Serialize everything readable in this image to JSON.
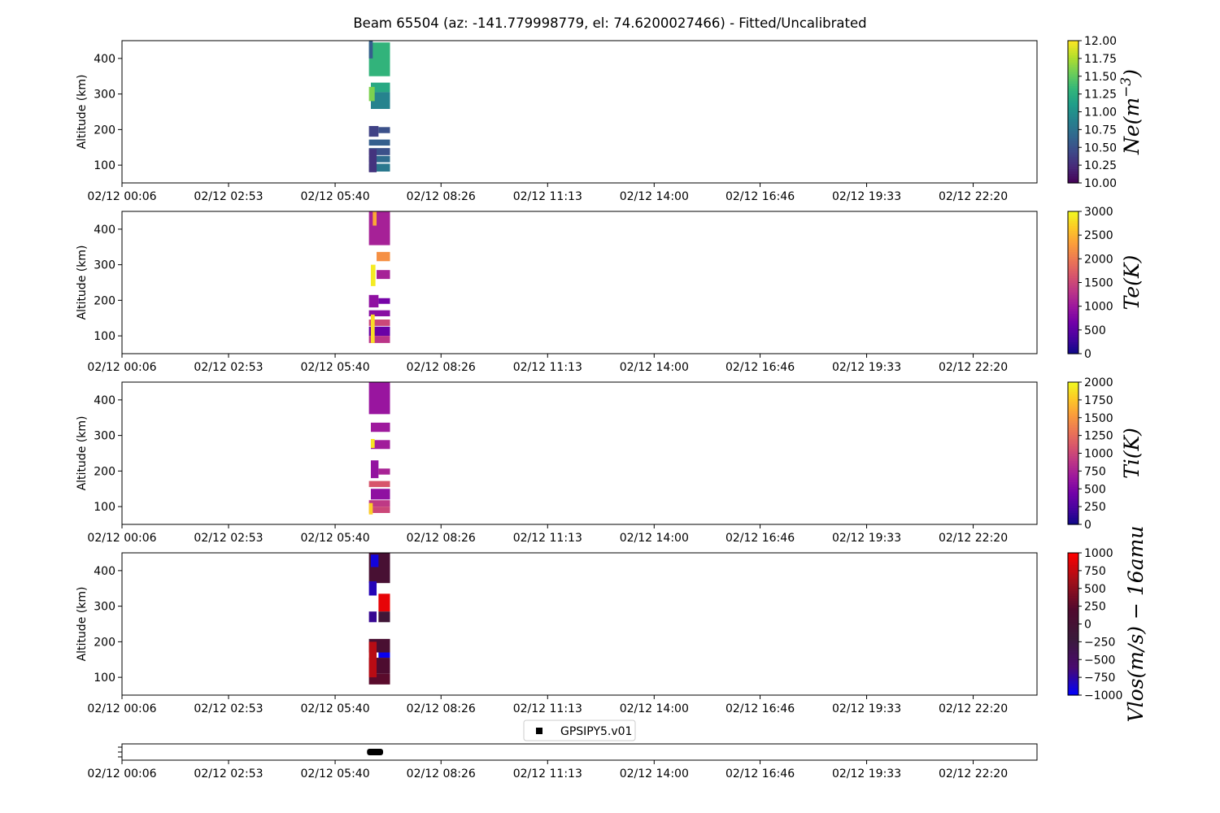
{
  "title": "Beam 65504 (az: -141.779998779, el: 74.6200027466) - Fitted/Uncalibrated",
  "x_tick_labels": [
    "02/12 00:06",
    "02/12 02:53",
    "02/12 05:40",
    "02/12 08:26",
    "02/12 11:13",
    "02/12 14:00",
    "02/12 16:46",
    "02/12 19:33",
    "02/12 22:20"
  ],
  "legend_label": "GPSIPY5.v01",
  "chart_data": [
    {
      "type": "heatmap",
      "ylabel": "Altitude (km)",
      "yticks": [
        100,
        200,
        300,
        400
      ],
      "ylim": [
        50,
        450
      ],
      "colormap": "viridis",
      "colorbar": {
        "label": "Ne(m^{-3})",
        "range": [
          10.0,
          12.0
        ],
        "ticks": [
          "10.00",
          "10.25",
          "10.50",
          "10.75",
          "11.00",
          "11.25",
          "11.50",
          "11.75",
          "12.00"
        ]
      },
      "cells": [
        {
          "t0": 6.55,
          "t1": 7.1,
          "z0": 350,
          "z1": 445,
          "value": 11.3
        },
        {
          "t0": 6.55,
          "t1": 6.65,
          "z0": 400,
          "z1": 450,
          "value": 10.6
        },
        {
          "t0": 6.6,
          "t1": 7.1,
          "z0": 305,
          "z1": 332,
          "value": 11.2
        },
        {
          "t0": 6.6,
          "t1": 7.1,
          "z0": 258,
          "z1": 305,
          "value": 10.9
        },
        {
          "t0": 6.55,
          "t1": 6.7,
          "z0": 280,
          "z1": 320,
          "value": 11.6
        },
        {
          "t0": 6.55,
          "t1": 6.8,
          "z0": 180,
          "z1": 210,
          "value": 10.4
        },
        {
          "t0": 6.8,
          "t1": 7.1,
          "z0": 190,
          "z1": 207,
          "value": 10.5
        },
        {
          "t0": 6.55,
          "t1": 7.1,
          "z0": 155,
          "z1": 172,
          "value": 10.6
        },
        {
          "t0": 6.55,
          "t1": 7.1,
          "z0": 128,
          "z1": 148,
          "value": 10.5
        },
        {
          "t0": 6.55,
          "t1": 7.1,
          "z0": 108,
          "z1": 126,
          "value": 10.7
        },
        {
          "t0": 6.55,
          "t1": 7.1,
          "z0": 82,
          "z1": 104,
          "value": 10.8
        },
        {
          "t0": 6.55,
          "t1": 6.75,
          "z0": 80,
          "z1": 145,
          "value": 10.3
        }
      ]
    },
    {
      "type": "heatmap",
      "ylabel": "Altitude (km)",
      "yticks": [
        100,
        200,
        300,
        400
      ],
      "ylim": [
        50,
        450
      ],
      "colormap": "plasma",
      "colorbar": {
        "label": "Te(K)",
        "range": [
          0,
          3000
        ],
        "ticks": [
          "0",
          "500",
          "1000",
          "1500",
          "2000",
          "2500",
          "3000"
        ]
      },
      "cells": [
        {
          "t0": 6.55,
          "t1": 7.1,
          "z0": 355,
          "z1": 450,
          "value": 1100
        },
        {
          "t0": 6.65,
          "t1": 6.75,
          "z0": 410,
          "z1": 450,
          "value": 2400
        },
        {
          "t0": 6.75,
          "t1": 7.1,
          "z0": 310,
          "z1": 336,
          "value": 2200
        },
        {
          "t0": 6.75,
          "t1": 7.1,
          "z0": 260,
          "z1": 285,
          "value": 1100
        },
        {
          "t0": 6.6,
          "t1": 6.72,
          "z0": 240,
          "z1": 300,
          "value": 2900
        },
        {
          "t0": 6.55,
          "t1": 6.8,
          "z0": 180,
          "z1": 215,
          "value": 900
        },
        {
          "t0": 6.8,
          "t1": 7.1,
          "z0": 190,
          "z1": 206,
          "value": 700
        },
        {
          "t0": 6.55,
          "t1": 7.1,
          "z0": 155,
          "z1": 172,
          "value": 850
        },
        {
          "t0": 6.55,
          "t1": 7.1,
          "z0": 128,
          "z1": 146,
          "value": 1500
        },
        {
          "t0": 6.55,
          "t1": 7.1,
          "z0": 100,
          "z1": 126,
          "value": 600
        },
        {
          "t0": 6.55,
          "t1": 7.1,
          "z0": 80,
          "z1": 100,
          "value": 1300
        },
        {
          "t0": 6.6,
          "t1": 6.7,
          "z0": 80,
          "z1": 160,
          "value": 2800
        }
      ]
    },
    {
      "type": "heatmap",
      "ylabel": "Altitude (km)",
      "yticks": [
        100,
        200,
        300,
        400
      ],
      "ylim": [
        50,
        450
      ],
      "colormap": "plasma",
      "colorbar": {
        "label": "Ti(K)",
        "range": [
          0,
          2000
        ],
        "ticks": [
          "0",
          "250",
          "500",
          "750",
          "1000",
          "1250",
          "1500",
          "1750",
          "2000"
        ]
      },
      "cells": [
        {
          "t0": 6.55,
          "t1": 7.1,
          "z0": 360,
          "z1": 450,
          "value": 650
        },
        {
          "t0": 6.6,
          "t1": 7.1,
          "z0": 310,
          "z1": 336,
          "value": 680
        },
        {
          "t0": 6.6,
          "t1": 7.1,
          "z0": 262,
          "z1": 287,
          "value": 700
        },
        {
          "t0": 6.6,
          "t1": 6.7,
          "z0": 265,
          "z1": 290,
          "value": 1900
        },
        {
          "t0": 6.6,
          "t1": 6.8,
          "z0": 180,
          "z1": 230,
          "value": 620
        },
        {
          "t0": 6.8,
          "t1": 7.1,
          "z0": 190,
          "z1": 207,
          "value": 750
        },
        {
          "t0": 6.55,
          "t1": 7.1,
          "z0": 155,
          "z1": 172,
          "value": 1100
        },
        {
          "t0": 6.6,
          "t1": 7.1,
          "z0": 120,
          "z1": 150,
          "value": 600
        },
        {
          "t0": 6.55,
          "t1": 7.1,
          "z0": 100,
          "z1": 118,
          "value": 900
        },
        {
          "t0": 6.55,
          "t1": 7.1,
          "z0": 82,
          "z1": 100,
          "value": 1000
        },
        {
          "t0": 6.55,
          "t1": 6.65,
          "z0": 78,
          "z1": 110,
          "value": 1800
        }
      ]
    },
    {
      "type": "heatmap",
      "ylabel": "Altitude (km)",
      "yticks": [
        100,
        200,
        300,
        400
      ],
      "ylim": [
        50,
        450
      ],
      "colormap": "bwr",
      "colorbar": {
        "label": "Vlos(m/s)-16amu",
        "range": [
          -1000,
          1000
        ],
        "ticks": [
          "−1000",
          "−750",
          "−500",
          "−250",
          "0",
          "250",
          "500",
          "750",
          "1000"
        ]
      },
      "cells": [
        {
          "t0": 6.55,
          "t1": 7.1,
          "z0": 365,
          "z1": 450,
          "value": 50
        },
        {
          "t0": 6.6,
          "t1": 6.8,
          "z0": 410,
          "z1": 445,
          "value": -900
        },
        {
          "t0": 6.55,
          "t1": 6.75,
          "z0": 330,
          "z1": 370,
          "value": -800
        },
        {
          "t0": 6.8,
          "t1": 7.1,
          "z0": 285,
          "z1": 335,
          "value": 900
        },
        {
          "t0": 6.55,
          "t1": 6.75,
          "z0": 255,
          "z1": 285,
          "value": -700
        },
        {
          "t0": 6.8,
          "t1": 7.1,
          "z0": 255,
          "z1": 285,
          "value": -100
        },
        {
          "t0": 6.55,
          "t1": 7.1,
          "z0": 170,
          "z1": 208,
          "value": 80
        },
        {
          "t0": 6.8,
          "t1": 7.1,
          "z0": 155,
          "z1": 170,
          "value": -950
        },
        {
          "t0": 6.55,
          "t1": 7.1,
          "z0": 110,
          "z1": 155,
          "value": 150
        },
        {
          "t0": 6.55,
          "t1": 7.1,
          "z0": 80,
          "z1": 110,
          "value": 250
        },
        {
          "t0": 6.55,
          "t1": 6.75,
          "z0": 100,
          "z1": 200,
          "value": 700
        }
      ]
    },
    {
      "type": "scatter",
      "series": [
        {
          "name": "GPSIPY5.v01",
          "t_start": 6.5,
          "t_end": 6.92
        }
      ]
    }
  ]
}
